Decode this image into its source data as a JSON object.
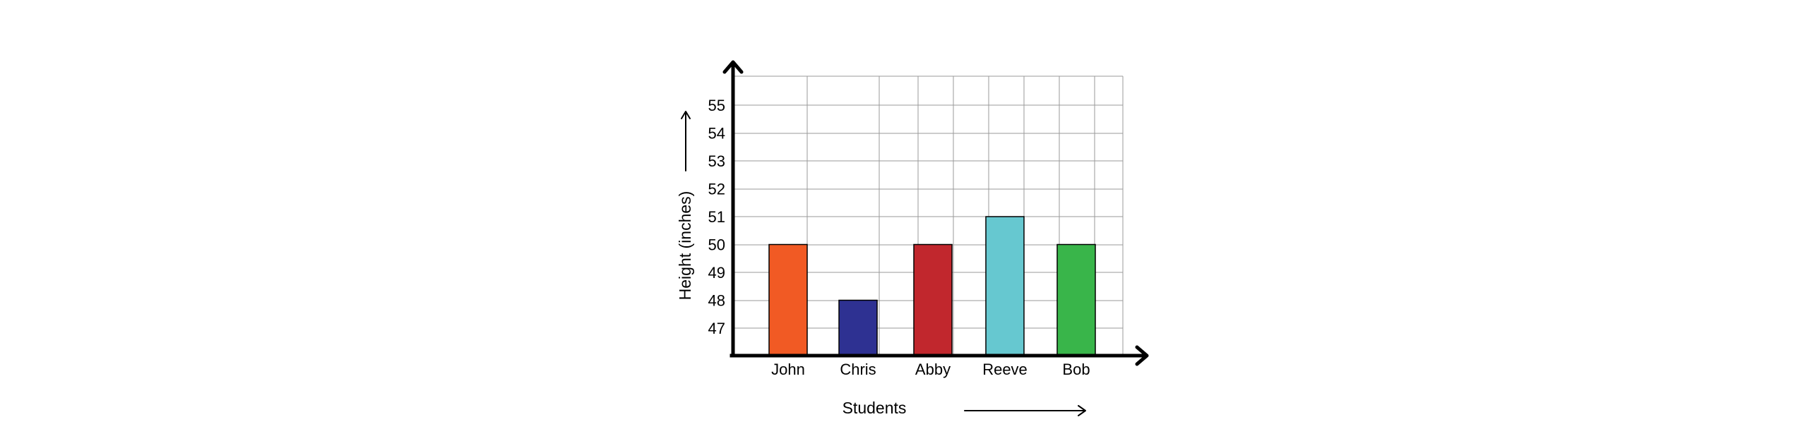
{
  "chart_data": {
    "type": "bar",
    "title": "",
    "xlabel": "Students",
    "ylabel": "Height (inches)",
    "categories": [
      "John",
      "Chris",
      "Abby",
      "Reeve",
      "Bob"
    ],
    "values": [
      50,
      48,
      50,
      51,
      50
    ],
    "colors": [
      "#f15a24",
      "#2e3192",
      "#c1272d",
      "#66c8d0",
      "#39b54a"
    ],
    "y_ticks": [
      47,
      48,
      49,
      50,
      51,
      52,
      53,
      54,
      55
    ],
    "grid": true,
    "legend": "none"
  }
}
